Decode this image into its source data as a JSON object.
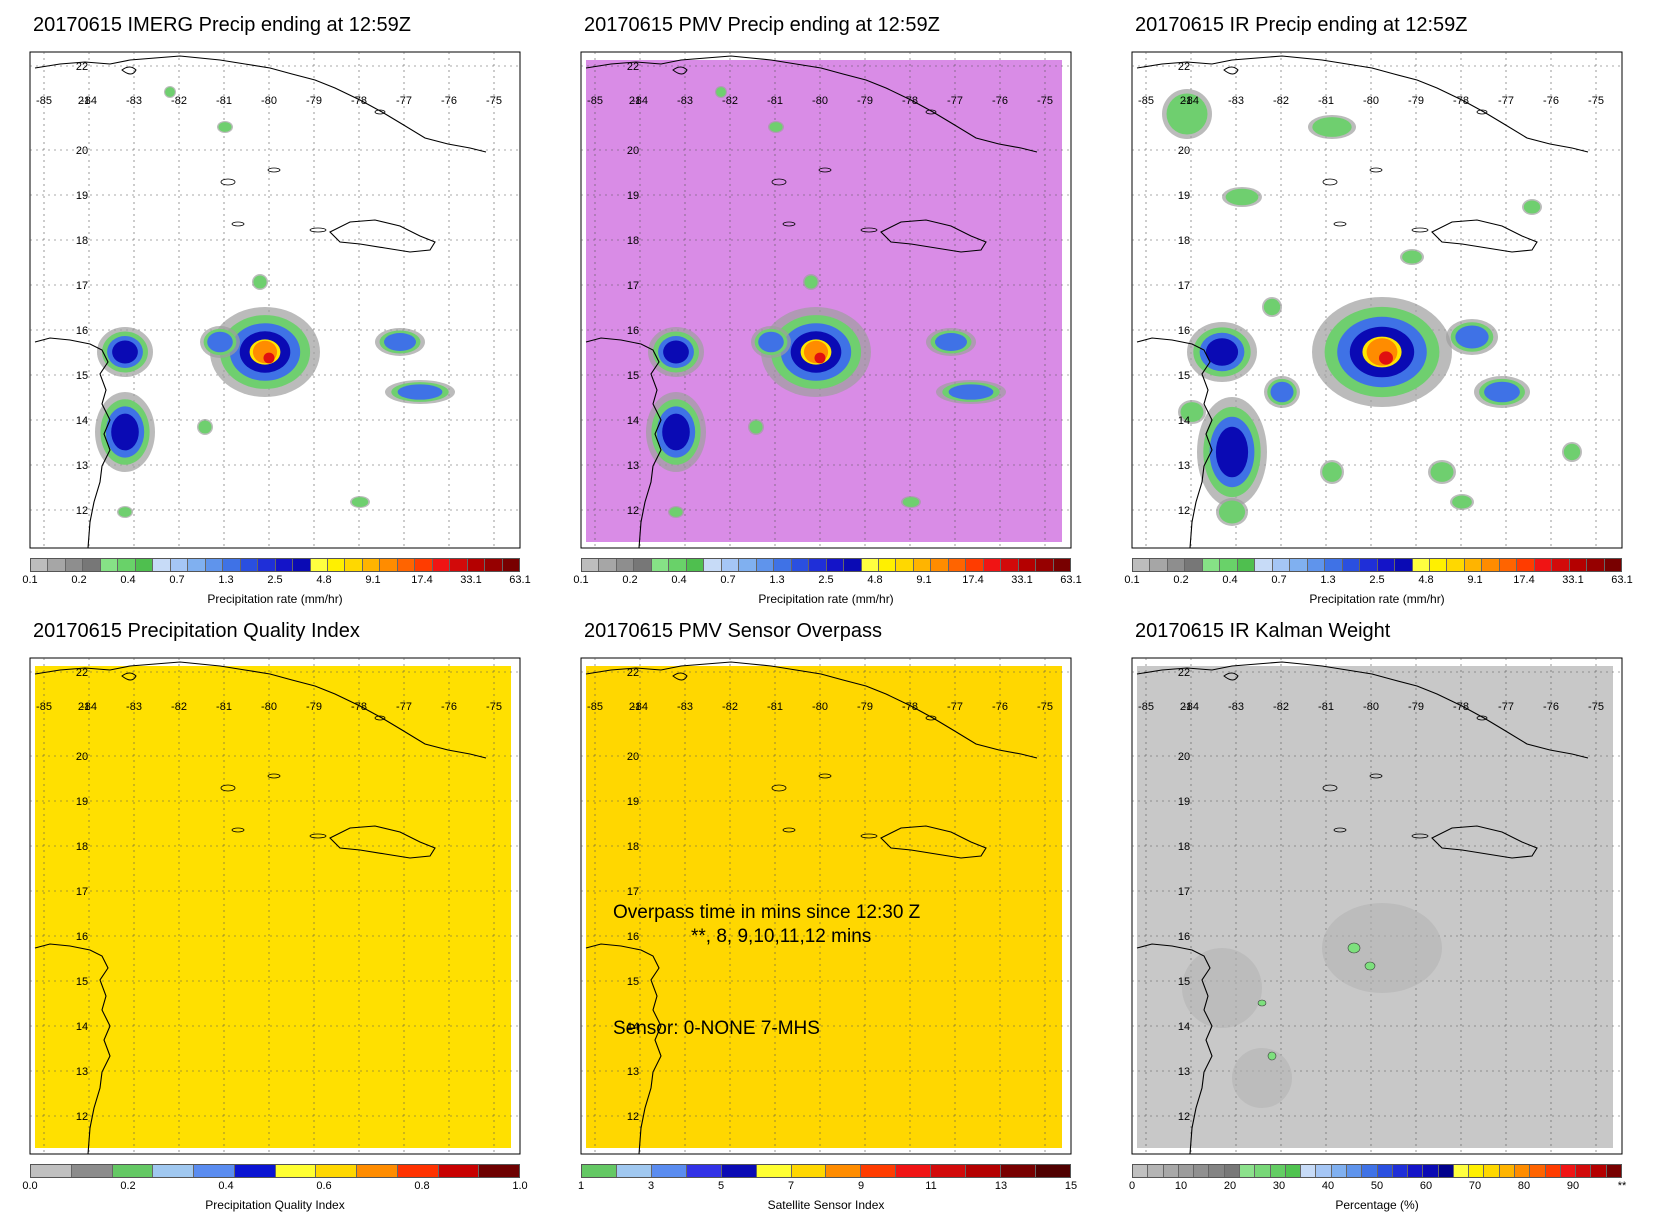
{
  "panels": [
    {
      "title": "20170615 IMERG Precip ending at 12:59Z",
      "colorbar": {
        "label": "Precipitation rate (mm/hr)",
        "ticks": [
          "0.1",
          "0.2",
          "0.4",
          "0.7",
          "1.3",
          "2.5",
          "4.8",
          "9.1",
          "17.4",
          "33.1",
          "63.1"
        ],
        "colors": [
          "#bdbdbd",
          "#a6a6a6",
          "#8e8e8e",
          "#777777",
          "#86e186",
          "#69d269",
          "#4fbf4f",
          "#c7dbf7",
          "#a5c6f5",
          "#80b0f0",
          "#5f94ec",
          "#3f72e6",
          "#2a4fe0",
          "#1f2fd8",
          "#1414c8",
          "#0a0ab4",
          "#ffff40",
          "#fff000",
          "#ffd800",
          "#ffb400",
          "#ff8c00",
          "#ff6400",
          "#ff3c00",
          "#f01414",
          "#d20a0a",
          "#b40000",
          "#960000",
          "#780000"
        ]
      }
    },
    {
      "title": "20170615 PMV Precip ending at 12:59Z",
      "colorbar": {
        "label": "Precipitation rate (mm/hr)",
        "ticks": [
          "0.1",
          "0.2",
          "0.4",
          "0.7",
          "1.3",
          "2.5",
          "4.8",
          "9.1",
          "17.4",
          "33.1",
          "63.1"
        ],
        "colors": [
          "#bdbdbd",
          "#a6a6a6",
          "#8e8e8e",
          "#777777",
          "#86e186",
          "#69d269",
          "#4fbf4f",
          "#c7dbf7",
          "#a5c6f5",
          "#80b0f0",
          "#5f94ec",
          "#3f72e6",
          "#2a4fe0",
          "#1f2fd8",
          "#1414c8",
          "#0a0ab4",
          "#ffff40",
          "#fff000",
          "#ffd800",
          "#ffb400",
          "#ff8c00",
          "#ff6400",
          "#ff3c00",
          "#f01414",
          "#d20a0a",
          "#b40000",
          "#960000",
          "#780000"
        ]
      }
    },
    {
      "title": "20170615 IR Precip ending at 12:59Z",
      "colorbar": {
        "label": "Precipitation rate (mm/hr)",
        "ticks": [
          "0.1",
          "0.2",
          "0.4",
          "0.7",
          "1.3",
          "2.5",
          "4.8",
          "9.1",
          "17.4",
          "33.1",
          "63.1"
        ],
        "colors": [
          "#bdbdbd",
          "#a6a6a6",
          "#8e8e8e",
          "#777777",
          "#86e186",
          "#69d269",
          "#4fbf4f",
          "#c7dbf7",
          "#a5c6f5",
          "#80b0f0",
          "#5f94ec",
          "#3f72e6",
          "#2a4fe0",
          "#1f2fd8",
          "#1414c8",
          "#0a0ab4",
          "#ffff40",
          "#fff000",
          "#ffd800",
          "#ffb400",
          "#ff8c00",
          "#ff6400",
          "#ff3c00",
          "#f01414",
          "#d20a0a",
          "#b40000",
          "#960000",
          "#780000"
        ]
      }
    },
    {
      "title": "20170615 Precipitation Quality Index",
      "colorbar": {
        "label": "Precipitation Quality Index",
        "ticks": [
          "0.0",
          "0.2",
          "0.4",
          "0.6",
          "0.8",
          "1.0"
        ],
        "colors": [
          "#c0c0c0",
          "#8c8c8c",
          "#64c864",
          "#a0c8f0",
          "#5a8cf0",
          "#0a14d2",
          "#ffff32",
          "#ffd700",
          "#ff8c00",
          "#ff3200",
          "#c80000",
          "#6e0000"
        ]
      }
    },
    {
      "title": "20170615 PMV Sensor Overpass",
      "colorbar": {
        "label": "Satellite Sensor Index",
        "ticks": [
          "1",
          "3",
          "5",
          "7",
          "9",
          "11",
          "13",
          "15"
        ],
        "colors": [
          "#64c864",
          "#a0c8f0",
          "#5a8cf0",
          "#3232e6",
          "#0a0ab4",
          "#ffff32",
          "#ffd700",
          "#ff8c00",
          "#ff3c00",
          "#f01414",
          "#d20a0a",
          "#b40000",
          "#780000",
          "#500000"
        ]
      }
    },
    {
      "title": "20170615 IR Kalman Weight",
      "colorbar": {
        "label": "Percentage (%)",
        "ticks": [
          "0",
          "10",
          "20",
          "30",
          "40",
          "50",
          "60",
          "70",
          "80",
          "90",
          "**"
        ],
        "colors": [
          "#c0c0c0",
          "#b4b4b4",
          "#a8a8a8",
          "#9c9c9c",
          "#909090",
          "#848484",
          "#787878",
          "#8ce18c",
          "#78d778",
          "#64cd64",
          "#50c350",
          "#c7dbf7",
          "#a5c6f5",
          "#80b0f0",
          "#5f94ec",
          "#3f72e6",
          "#2a4fe0",
          "#1f2fd8",
          "#1414c8",
          "#0a0ab4",
          "#00008c",
          "#ffff40",
          "#fff000",
          "#ffd800",
          "#ffb400",
          "#ff8c00",
          "#ff6400",
          "#ff3c00",
          "#f01414",
          "#d20a0a",
          "#b40000",
          "#780000"
        ]
      }
    }
  ],
  "map": {
    "lon_ticks": [
      "-85",
      "-84",
      "-83",
      "-82",
      "-81",
      "-80",
      "-79",
      "-78",
      "-77",
      "-76",
      "-75"
    ],
    "lat_ticks": [
      "22",
      "20",
      "19",
      "18",
      "17",
      "16",
      "15",
      "14",
      "13",
      "12"
    ],
    "lat21_label": "21"
  },
  "overpass_note": {
    "line1": "Overpass time in mins since 12:30 Z",
    "line2": "**, 8, 9,10,11,12 mins",
    "line3": "Sensor:   0-NONE  7-MHS"
  },
  "colors": {
    "pmv_background": "#d98ce6",
    "quality_fill": "#ffe000",
    "overpass_fill": "#ffd700",
    "kalman_fill": "#c8c8c8"
  }
}
